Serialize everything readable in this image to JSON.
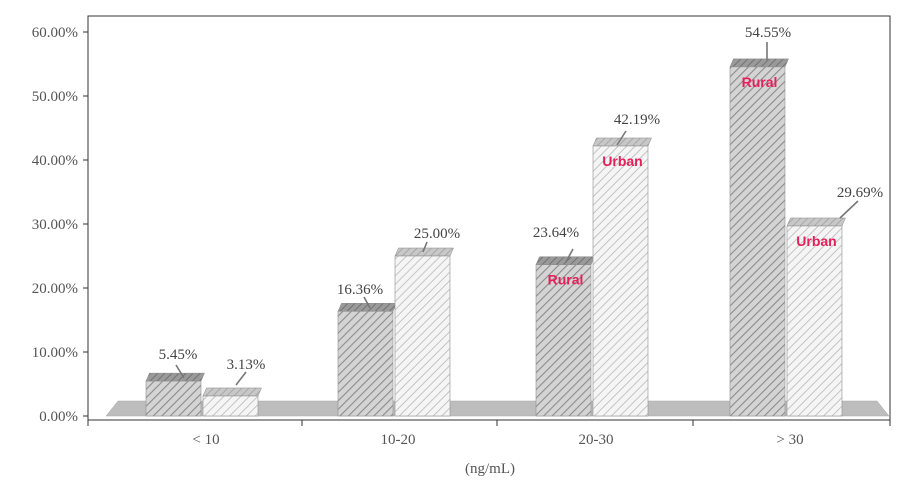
{
  "chart_data": {
    "type": "bar",
    "categories": [
      "< 10",
      "10-20",
      "20-30",
      "> 30"
    ],
    "series": [
      {
        "name": "Rural",
        "values": [
          5.45,
          16.36,
          23.64,
          54.55
        ]
      },
      {
        "name": "Urban",
        "values": [
          3.13,
          25.0,
          42.19,
          29.69
        ]
      }
    ],
    "value_labels": [
      [
        "5.45%",
        "16.36%",
        "23.64%",
        "54.55%"
      ],
      [
        "3.13%",
        "25.00%",
        "42.19%",
        "29.69%"
      ]
    ],
    "series_tags": [
      {
        "category_index": 2,
        "series_index": 0,
        "text": "Rural"
      },
      {
        "category_index": 2,
        "series_index": 1,
        "text": "Urban"
      },
      {
        "category_index": 3,
        "series_index": 0,
        "text": "Rural"
      },
      {
        "category_index": 3,
        "series_index": 1,
        "text": "Urban"
      }
    ],
    "y_ticks": [
      "0.00%",
      "10.00%",
      "20.00%",
      "30.00%",
      "40.00%",
      "50.00%",
      "60.00%"
    ],
    "y_tick_values": [
      0,
      10,
      20,
      30,
      40,
      50,
      60
    ],
    "ylim": [
      0,
      60
    ],
    "xlabel": "(ng/mL)",
    "ylabel": "",
    "title": "",
    "grid": false,
    "style": "3d-hatched",
    "colors": {
      "rural_face": "#cfcfcf",
      "rural_hatch": "#8a8a8a",
      "urban_face": "#f2f2f2",
      "urban_hatch": "#bdbdbd",
      "tag_color": "#e8205a",
      "floor": "#bdbdbd"
    }
  }
}
